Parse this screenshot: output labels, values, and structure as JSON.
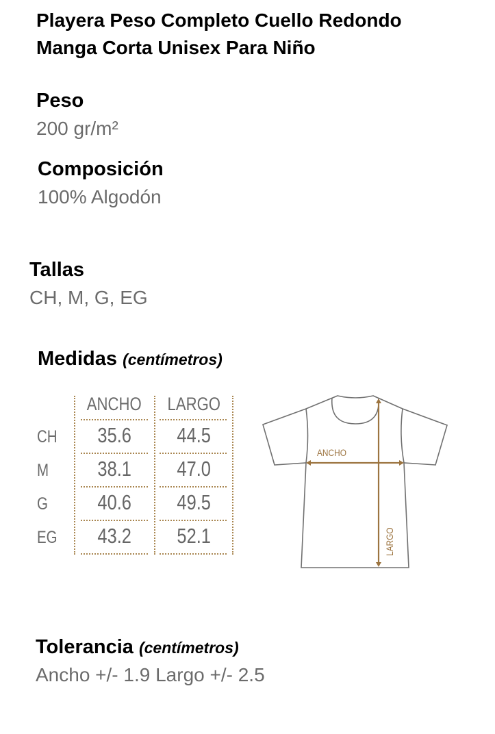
{
  "title": {
    "line1": "Playera Peso Completo Cuello Redondo",
    "line2": "Manga Corta Unisex Para Niño"
  },
  "peso": {
    "label": "Peso",
    "value": "200 gr/m²"
  },
  "composicion": {
    "label": "Composición",
    "value": "100% Algodón"
  },
  "tallas": {
    "label": "Tallas",
    "value": "CH, M, G, EG"
  },
  "medidas": {
    "label": "Medidas",
    "unit": "(centímetros)",
    "columns": [
      "ANCHO",
      "LARGO"
    ],
    "rows": [
      {
        "size": "CH",
        "ancho": "35.6",
        "largo": "44.5"
      },
      {
        "size": "M",
        "ancho": "38.1",
        "largo": "47.0"
      },
      {
        "size": "G",
        "ancho": "40.6",
        "largo": "49.5"
      },
      {
        "size": "EG",
        "ancho": "43.2",
        "largo": "52.1"
      }
    ]
  },
  "diagram": {
    "ancho_label": "ANCHO",
    "largo_label": "LARGO",
    "accent_color": "#9c7440",
    "outline_color": "#707070"
  },
  "tolerancia": {
    "label": "Tolerancia",
    "unit": "(centímetros)",
    "value": "Ancho +/- 1.9 Largo +/- 2.5"
  }
}
